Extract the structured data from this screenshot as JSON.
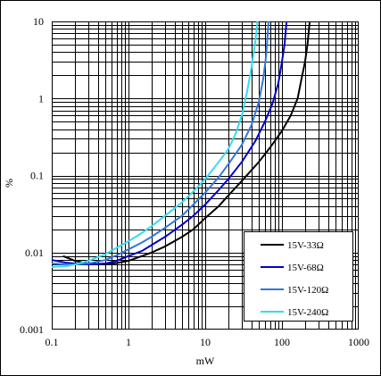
{
  "chart_data": {
    "type": "line",
    "title": "",
    "xlabel": "mW",
    "ylabel": "%",
    "x_scale": "log",
    "y_scale": "log",
    "xlim": [
      0.1,
      1000
    ],
    "ylim": [
      0.001,
      10
    ],
    "x_tick_labels": [
      "0.1",
      "1",
      "10",
      "100",
      "1000"
    ],
    "y_tick_labels": [
      "0.001",
      "0.01",
      "0.1",
      "1",
      "10"
    ],
    "grid": true,
    "legend_position": "bottom-right",
    "series": [
      {
        "name": "15V-33Ω",
        "color": "#000000",
        "points": [
          [
            0.14,
            0.009
          ],
          [
            0.2,
            0.0078
          ],
          [
            0.3,
            0.0072
          ],
          [
            0.5,
            0.007
          ],
          [
            0.7,
            0.0073
          ],
          [
            1,
            0.0078
          ],
          [
            1.5,
            0.009
          ],
          [
            2,
            0.01
          ],
          [
            3,
            0.012
          ],
          [
            5,
            0.016
          ],
          [
            7,
            0.02
          ],
          [
            10,
            0.028
          ],
          [
            15,
            0.04
          ],
          [
            20,
            0.055
          ],
          [
            30,
            0.085
          ],
          [
            50,
            0.15
          ],
          [
            70,
            0.23
          ],
          [
            100,
            0.38
          ],
          [
            130,
            0.6
          ],
          [
            160,
            1.0
          ],
          [
            180,
            1.8
          ],
          [
            200,
            3.0
          ],
          [
            215,
            5.0
          ],
          [
            230,
            10.0
          ]
        ]
      },
      {
        "name": "15V-68Ω",
        "color": "#0000cc",
        "points": [
          [
            0.1,
            0.008
          ],
          [
            0.15,
            0.0074
          ],
          [
            0.2,
            0.0072
          ],
          [
            0.3,
            0.007
          ],
          [
            0.5,
            0.0072
          ],
          [
            0.7,
            0.0078
          ],
          [
            1,
            0.009
          ],
          [
            1.5,
            0.0105
          ],
          [
            2,
            0.0125
          ],
          [
            3,
            0.016
          ],
          [
            5,
            0.023
          ],
          [
            7,
            0.03
          ],
          [
            10,
            0.042
          ],
          [
            15,
            0.065
          ],
          [
            20,
            0.09
          ],
          [
            30,
            0.15
          ],
          [
            45,
            0.28
          ],
          [
            60,
            0.5
          ],
          [
            75,
            0.85
          ],
          [
            90,
            1.6
          ],
          [
            100,
            3.0
          ],
          [
            108,
            5.0
          ],
          [
            115,
            10.0
          ]
        ]
      },
      {
        "name": "15V-120Ω",
        "color": "#3377dd",
        "points": [
          [
            0.1,
            0.0072
          ],
          [
            0.15,
            0.007
          ],
          [
            0.2,
            0.007
          ],
          [
            0.3,
            0.0072
          ],
          [
            0.5,
            0.008
          ],
          [
            0.7,
            0.0092
          ],
          [
            1,
            0.011
          ],
          [
            1.5,
            0.0135
          ],
          [
            2,
            0.016
          ],
          [
            3,
            0.021
          ],
          [
            5,
            0.03
          ],
          [
            7,
            0.042
          ],
          [
            10,
            0.06
          ],
          [
            15,
            0.095
          ],
          [
            20,
            0.14
          ],
          [
            30,
            0.25
          ],
          [
            40,
            0.45
          ],
          [
            50,
            0.9
          ],
          [
            57,
            1.8
          ],
          [
            62,
            3.5
          ],
          [
            67,
            10.0
          ]
        ]
      },
      {
        "name": "15V-240Ω",
        "color": "#33ddee",
        "points": [
          [
            0.1,
            0.0065
          ],
          [
            0.15,
            0.0066
          ],
          [
            0.2,
            0.007
          ],
          [
            0.3,
            0.0078
          ],
          [
            0.5,
            0.0095
          ],
          [
            0.7,
            0.0115
          ],
          [
            1,
            0.014
          ],
          [
            1.5,
            0.018
          ],
          [
            2,
            0.022
          ],
          [
            3,
            0.03
          ],
          [
            5,
            0.045
          ],
          [
            7,
            0.062
          ],
          [
            10,
            0.09
          ],
          [
            15,
            0.15
          ],
          [
            20,
            0.22
          ],
          [
            25,
            0.35
          ],
          [
            30,
            0.6
          ],
          [
            35,
            1.2
          ],
          [
            40,
            2.5
          ],
          [
            45,
            5.5
          ],
          [
            48,
            10.0
          ]
        ]
      }
    ]
  }
}
